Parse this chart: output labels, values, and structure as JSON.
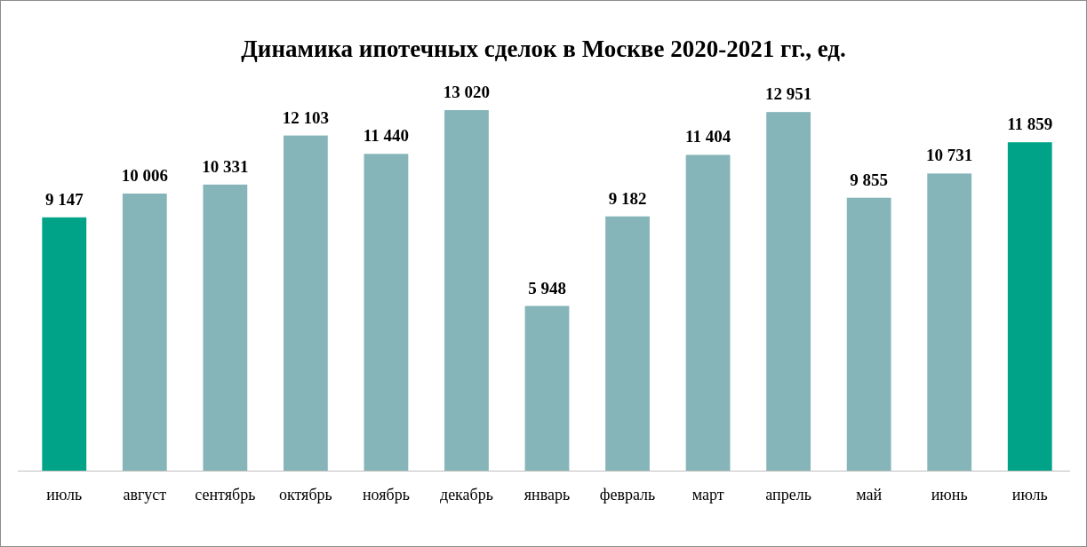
{
  "chart_data": {
    "type": "bar",
    "title": "Динамика ипотечных сделок в Москве 2020-2021 гг., ед.",
    "categories": [
      "июль",
      "август",
      "сентябрь",
      "октябрь",
      "ноябрь",
      "декабрь",
      "январь",
      "февраль",
      "март",
      "апрель",
      "май",
      "июнь",
      "июль"
    ],
    "values": [
      9147,
      10006,
      10331,
      12103,
      11440,
      13020,
      5948,
      9182,
      11404,
      12951,
      9855,
      10731,
      11859
    ],
    "colors": [
      "#00a388",
      "#86b5b9",
      "#86b5b9",
      "#86b5b9",
      "#86b5b9",
      "#86b5b9",
      "#86b5b9",
      "#86b5b9",
      "#86b5b9",
      "#86b5b9",
      "#86b5b9",
      "#86b5b9",
      "#00a388"
    ],
    "value_labels": [
      "9 147",
      "10 006",
      "10 331",
      "12 103",
      "11 440",
      "13 020",
      "5 948",
      "9 182",
      "11 404",
      "12 951",
      "9 855",
      "10 731",
      "11 859"
    ],
    "data_labels": true
  }
}
